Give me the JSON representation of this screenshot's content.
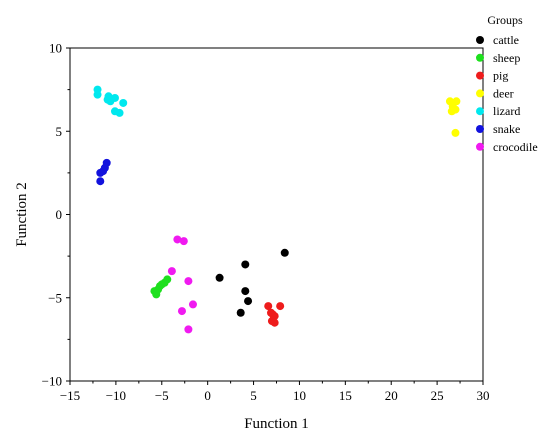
{
  "chart_data": {
    "type": "scatter",
    "xlabel": "Function 1",
    "ylabel": "Function 2",
    "xlim": [
      -15,
      30
    ],
    "ylim": [
      -10,
      10
    ],
    "xticks": [
      -15,
      -10,
      -5,
      0,
      5,
      10,
      15,
      20,
      25,
      30
    ],
    "yticks": [
      -10,
      -5,
      0,
      5,
      10
    ],
    "x_tick_labels": [
      "−15",
      "−10",
      "−5",
      "0",
      "5",
      "10",
      "15",
      "20",
      "25",
      "30"
    ],
    "y_tick_labels": [
      "−10",
      "−5",
      "0",
      "5",
      "10"
    ],
    "grid": false,
    "legend": {
      "title": "Groups",
      "placement": "top-right"
    },
    "series": [
      {
        "name": "cattle",
        "color": "#000000",
        "points": [
          [
            1.3,
            -3.8
          ],
          [
            4.1,
            -3.0
          ],
          [
            8.4,
            -2.3
          ],
          [
            4.1,
            -4.6
          ],
          [
            4.4,
            -5.2
          ],
          [
            3.6,
            -5.9
          ]
        ]
      },
      {
        "name": "sheep",
        "color": "#1ee01e",
        "points": [
          [
            -4.4,
            -3.9
          ],
          [
            -4.7,
            -4.1
          ],
          [
            -5.0,
            -4.2
          ],
          [
            -5.2,
            -4.3
          ],
          [
            -5.4,
            -4.5
          ],
          [
            -5.8,
            -4.6
          ],
          [
            -5.6,
            -4.8
          ]
        ]
      },
      {
        "name": "pig",
        "color": "#ee1c1c",
        "points": [
          [
            6.6,
            -5.5
          ],
          [
            7.9,
            -5.5
          ],
          [
            6.9,
            -5.9
          ],
          [
            7.1,
            -6.0
          ],
          [
            7.3,
            -6.1
          ],
          [
            7.0,
            -6.4
          ],
          [
            7.3,
            -6.5
          ]
        ]
      },
      {
        "name": "deer",
        "color": "#ffff00",
        "points": [
          [
            26.4,
            6.8
          ],
          [
            27.1,
            6.8
          ],
          [
            26.7,
            6.5
          ],
          [
            27.0,
            6.3
          ],
          [
            26.6,
            6.2
          ],
          [
            27.0,
            4.9
          ]
        ]
      },
      {
        "name": "lizard",
        "color": "#00e8ee",
        "points": [
          [
            -12.0,
            7.5
          ],
          [
            -12.0,
            7.2
          ],
          [
            -10.8,
            7.1
          ],
          [
            -10.1,
            7.0
          ],
          [
            -10.9,
            6.9
          ],
          [
            -10.6,
            6.8
          ],
          [
            -9.2,
            6.7
          ],
          [
            -10.1,
            6.2
          ],
          [
            -9.6,
            6.1
          ]
        ]
      },
      {
        "name": "snake",
        "color": "#1212dd",
        "points": [
          [
            -11.0,
            3.1
          ],
          [
            -11.2,
            2.8
          ],
          [
            -11.4,
            2.6
          ],
          [
            -11.7,
            2.5
          ],
          [
            -11.7,
            2.0
          ]
        ]
      },
      {
        "name": "crocodile",
        "color": "#f01af0",
        "points": [
          [
            -3.3,
            -1.5
          ],
          [
            -2.6,
            -1.6
          ],
          [
            -3.9,
            -3.4
          ],
          [
            -2.1,
            -4.0
          ],
          [
            -1.6,
            -5.4
          ],
          [
            -2.8,
            -5.8
          ],
          [
            -2.1,
            -6.9
          ]
        ]
      }
    ]
  }
}
